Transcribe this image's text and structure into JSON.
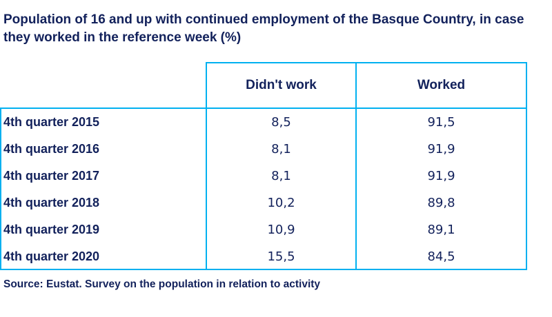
{
  "chart_data": {
    "type": "table",
    "title": "Population of 16 and up with continued employment of the Basque Country, in case they worked in the reference week (%)",
    "columns": [
      "Didn't work",
      "Worked"
    ],
    "rows": [
      {
        "label": "4th quarter 2015",
        "values": [
          "8,5",
          "91,5"
        ]
      },
      {
        "label": "4th quarter 2016",
        "values": [
          "8,1",
          "91,9"
        ]
      },
      {
        "label": "4th quarter 2017",
        "values": [
          "8,1",
          "91,9"
        ]
      },
      {
        "label": "4th quarter 2018",
        "values": [
          "10,2",
          "89,8"
        ]
      },
      {
        "label": "4th quarter 2019",
        "values": [
          "10,9",
          "89,1"
        ]
      },
      {
        "label": "4th quarter 2020",
        "values": [
          "15,5",
          "84,5"
        ]
      }
    ],
    "source": "Source: Eustat. Survey on the population in relation to activity"
  },
  "colors": {
    "text": "#12215b",
    "border": "#00b0f0"
  }
}
